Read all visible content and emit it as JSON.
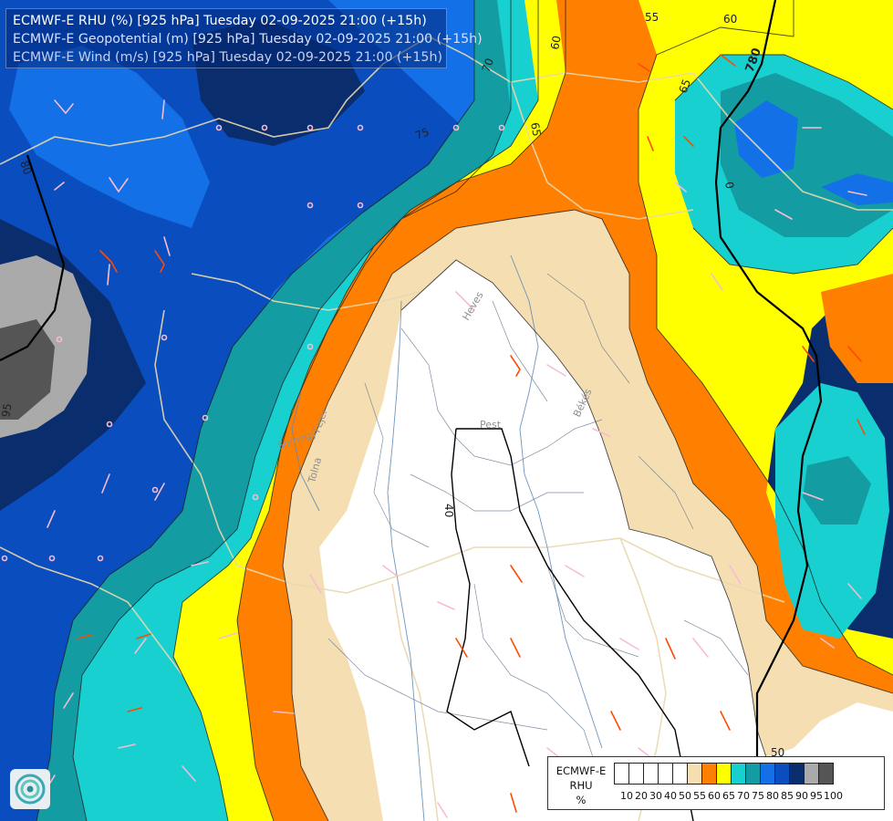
{
  "header": {
    "lines": [
      "ECMWF-E RHU (%) [925 hPa] Tuesday 02-09-2025 21:00 (+15h)",
      "ECMWF-E Geopotential (m) [925 hPa] Tuesday 02-09-2025 21:00 (+15h)",
      "ECMWF-E Wind (m/s) [925 hPa] Tuesday 02-09-2025 21:00 (+15h)"
    ],
    "colors": [
      "#ffffff",
      "#d8e0ff",
      "#c8d0f0"
    ]
  },
  "map": {
    "contour_labels": [
      "55",
      "60",
      "60",
      "65",
      "65",
      "70",
      "75",
      "80",
      "95",
      "40",
      "50",
      "0",
      "780"
    ],
    "place_labels": [
      "Heves",
      "Pest",
      "Békés",
      "Tolna",
      "Somogy",
      "Fejér"
    ]
  },
  "legend": {
    "title_line1": "ECMWF-E",
    "title_line2": "RHU",
    "unit": "%",
    "ticks": [
      "10",
      "20",
      "30",
      "40",
      "50",
      "55",
      "60",
      "65",
      "70",
      "75",
      "80",
      "85",
      "90",
      "95",
      "100"
    ],
    "colors": [
      "#ffffff",
      "#ffffff",
      "#ffffff",
      "#ffffff",
      "#ffffff",
      "#f4deb2",
      "#ff8000",
      "#ffff00",
      "#18d0d0",
      "#149ca3",
      "#1470e6",
      "#0a4dbf",
      "#0a2d6e",
      "#aaaaaa",
      "#555555"
    ]
  },
  "logo": {
    "icon": "ecmwf-swirl-logo"
  }
}
